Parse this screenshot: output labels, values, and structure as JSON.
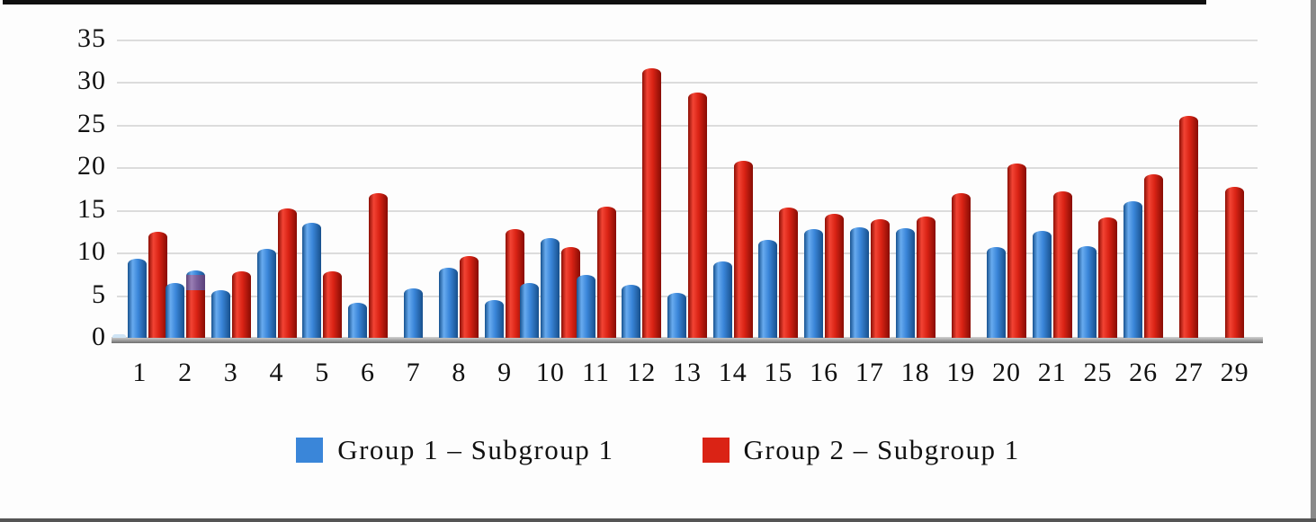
{
  "chart_data": {
    "type": "bar",
    "title": "",
    "xlabel": "",
    "ylabel": "",
    "ylim": [
      0,
      35
    ],
    "grid": "horizontal",
    "legend_position": "bottom-center",
    "yticks": [
      "0",
      "5",
      "10",
      "15",
      "20",
      "25",
      "30",
      "35"
    ],
    "categories": [
      "1",
      "2",
      "3",
      "4",
      "5",
      "6",
      "7",
      "8",
      "9",
      "10",
      "11",
      "12",
      "13",
      "14",
      "15",
      "16",
      "17",
      "18",
      "19",
      "20",
      "21",
      "25",
      "26",
      "27",
      "29"
    ],
    "series": [
      {
        "name": "Group 1 – Subgroup 1",
        "color": "#3a86d9",
        "values": [
          9.3,
          6.4,
          5.6,
          10.4,
          13.5,
          4.1,
          5.8,
          8.2,
          4.4,
          11.7,
          7.4,
          6.2,
          5.3,
          9.0,
          11.5,
          12.8,
          13.0,
          12.9,
          null,
          10.6,
          12.5,
          10.8,
          16.0,
          null,
          null
        ]
      },
      {
        "name": "Group 2 – Subgroup 1",
        "color": "#da2315",
        "values": [
          12.4,
          5.6,
          7.8,
          15.2,
          7.8,
          17.0,
          null,
          9.6,
          12.8,
          10.7,
          15.4,
          31.6,
          28.8,
          20.8,
          15.3,
          14.6,
          13.9,
          14.2,
          17.0,
          20.5,
          17.2,
          14.1,
          19.2,
          26.0,
          17.7
        ]
      }
    ],
    "annotations": {
      "extra_pale_blue_bar": {
        "category": "1",
        "value": 0.4,
        "color": "#cfe4f5"
      },
      "overlapping_bars_category_2": {
        "blue_height": 7.9,
        "red_height": 5.6,
        "purple_overlap_top": 7.4
      },
      "extra_blue_bar_category_10": 6.4,
      "categories_with_red_only": [
        "19",
        "27",
        "29"
      ],
      "categories_with_blue_only": [
        "7"
      ]
    },
    "render": {
      "bars_by_category": [
        {
          "label": "1",
          "bars": [
            {
              "t": "pale",
              "v": 0.4
            },
            {
              "t": "blue",
              "v": 9.3
            },
            {
              "t": "red",
              "v": 12.4
            }
          ]
        },
        {
          "label": "2",
          "bars": [
            {
              "t": "blue",
              "v": 6.4
            },
            {
              "t": "stack",
              "v": 7.9,
              "segs": [
                {
                  "t": "blue",
                  "u": 0.5
                },
                {
                  "t": "purple",
                  "u": 1.8
                },
                {
                  "t": "red",
                  "u": 5.6
                }
              ]
            }
          ]
        },
        {
          "label": "3",
          "bars": [
            {
              "t": "blue",
              "v": 5.6
            },
            {
              "t": "red",
              "v": 7.8
            }
          ]
        },
        {
          "label": "4",
          "bars": [
            {
              "t": "blue",
              "v": 10.4
            },
            {
              "t": "red",
              "v": 15.2
            }
          ]
        },
        {
          "label": "5",
          "bars": [
            {
              "t": "blue",
              "v": 13.5
            },
            {
              "t": "red",
              "v": 7.8
            }
          ]
        },
        {
          "label": "6",
          "bars": [
            {
              "t": "blue",
              "v": 4.1
            },
            {
              "t": "red",
              "v": 17.0
            }
          ]
        },
        {
          "label": "7",
          "bars": [
            {
              "t": "blue",
              "v": 5.8
            }
          ]
        },
        {
          "label": "8",
          "bars": [
            {
              "t": "blue",
              "v": 8.2
            },
            {
              "t": "red",
              "v": 9.6
            }
          ]
        },
        {
          "label": "9",
          "bars": [
            {
              "t": "blue",
              "v": 4.4
            },
            {
              "t": "red",
              "v": 12.8
            }
          ]
        },
        {
          "label": "10",
          "bars": [
            {
              "t": "blue",
              "v": 6.4
            },
            {
              "t": "blue",
              "v": 11.7
            },
            {
              "t": "red",
              "v": 10.7
            }
          ]
        },
        {
          "label": "11",
          "bars": [
            {
              "t": "blue",
              "v": 7.4
            },
            {
              "t": "red",
              "v": 15.4
            }
          ]
        },
        {
          "label": "12",
          "bars": [
            {
              "t": "blue",
              "v": 6.2
            },
            {
              "t": "red",
              "v": 31.6
            }
          ]
        },
        {
          "label": "13",
          "bars": [
            {
              "t": "blue",
              "v": 5.3
            },
            {
              "t": "red",
              "v": 28.8
            }
          ]
        },
        {
          "label": "14",
          "bars": [
            {
              "t": "blue",
              "v": 9.0
            },
            {
              "t": "red",
              "v": 20.8
            }
          ]
        },
        {
          "label": "15",
          "bars": [
            {
              "t": "blue",
              "v": 11.5
            },
            {
              "t": "red",
              "v": 15.3
            }
          ]
        },
        {
          "label": "16",
          "bars": [
            {
              "t": "blue",
              "v": 12.8
            },
            {
              "t": "red",
              "v": 14.6
            }
          ]
        },
        {
          "label": "17",
          "bars": [
            {
              "t": "blue",
              "v": 13.0
            },
            {
              "t": "red",
              "v": 13.9
            }
          ]
        },
        {
          "label": "18",
          "bars": [
            {
              "t": "blue",
              "v": 12.9
            },
            {
              "t": "red",
              "v": 14.2
            }
          ]
        },
        {
          "label": "19",
          "bars": [
            {
              "t": "red",
              "v": 17.0
            }
          ]
        },
        {
          "label": "20",
          "bars": [
            {
              "t": "blue",
              "v": 10.6
            },
            {
              "t": "red",
              "v": 20.5
            }
          ]
        },
        {
          "label": "21",
          "bars": [
            {
              "t": "blue",
              "v": 12.5
            },
            {
              "t": "red",
              "v": 17.2
            }
          ]
        },
        {
          "label": "25",
          "bars": [
            {
              "t": "blue",
              "v": 10.8
            },
            {
              "t": "red",
              "v": 14.1
            }
          ]
        },
        {
          "label": "26",
          "bars": [
            {
              "t": "blue",
              "v": 16.0
            },
            {
              "t": "red",
              "v": 19.2
            }
          ]
        },
        {
          "label": "27",
          "bars": [
            {
              "t": "red",
              "v": 26.0
            }
          ]
        },
        {
          "label": "29",
          "bars": [
            {
              "t": "red",
              "v": 17.7
            }
          ]
        }
      ]
    }
  }
}
